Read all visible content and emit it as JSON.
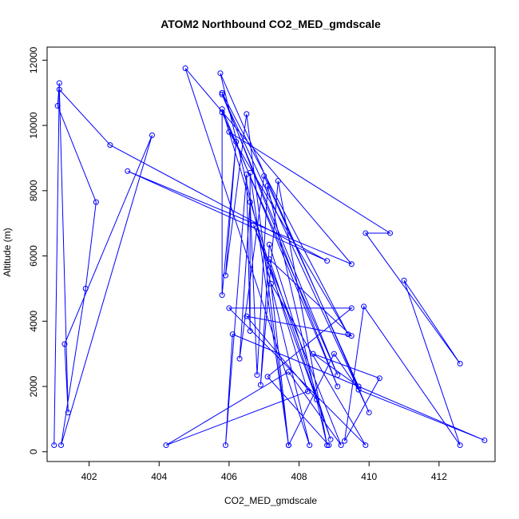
{
  "chart_data": {
    "type": "line",
    "title": "ATOM2 Northbound CO2_MED_gmdscale",
    "xlabel": "CO2_MED_gmdscale",
    "ylabel": "Altitude (m)",
    "xlim": [
      400.8,
      413.6
    ],
    "ylim": [
      -300,
      12400
    ],
    "xticks": [
      402,
      404,
      406,
      408,
      410,
      412
    ],
    "yticks": [
      0,
      2000,
      4000,
      6000,
      8000,
      10000,
      12000
    ],
    "grid": false,
    "legend": "none",
    "colors": {
      "series": "#0000ff",
      "axis": "#000000"
    },
    "series": [
      {
        "points": [
          [
            401.0,
            200
          ],
          [
            401.15,
            11300
          ],
          [
            401.1,
            10600
          ],
          [
            402.2,
            7650
          ],
          [
            401.9,
            5000
          ],
          [
            401.2,
            200
          ],
          [
            403.8,
            9700
          ],
          [
            401.3,
            3300
          ],
          [
            401.4,
            1200
          ],
          [
            401.15,
            11100
          ],
          [
            402.6,
            9400
          ],
          [
            408.8,
            5850
          ],
          [
            403.1,
            8600
          ],
          [
            409.5,
            5750
          ],
          [
            404.75,
            11750
          ],
          [
            408.3,
            200
          ],
          [
            405.75,
            11600
          ],
          [
            410.0,
            1200
          ],
          [
            405.8,
            10950
          ],
          [
            409.1,
            2350
          ],
          [
            405.8,
            10400
          ],
          [
            405.8,
            4800
          ],
          [
            406.2,
            9500
          ],
          [
            405.9,
            5400
          ],
          [
            406.5,
            10350
          ],
          [
            407.7,
            200
          ],
          [
            406.6,
            8550
          ],
          [
            406.6,
            3700
          ],
          [
            406.5,
            8500
          ],
          [
            405.9,
            200
          ],
          [
            406.1,
            3600
          ],
          [
            409.7,
            2000
          ],
          [
            407.0,
            8450
          ],
          [
            406.3,
            2850
          ],
          [
            406.6,
            7650
          ],
          [
            406.8,
            2350
          ],
          [
            407.1,
            8150
          ],
          [
            408.8,
            200
          ],
          [
            407.4,
            8300
          ],
          [
            406.9,
            2050
          ],
          [
            407.15,
            6350
          ],
          [
            408.9,
            380
          ],
          [
            407.15,
            5900
          ],
          [
            409.5,
            3550
          ],
          [
            406.5,
            4150
          ],
          [
            408.5,
            1600
          ],
          [
            406.7,
            6950
          ],
          [
            409.2,
            200
          ],
          [
            407.7,
            2450
          ],
          [
            404.2,
            200
          ],
          [
            408.25,
            1850
          ],
          [
            405.8,
            10500
          ],
          [
            409.1,
            2000
          ],
          [
            405.8,
            11000
          ],
          [
            409.4,
            3600
          ],
          [
            406.0,
            9800
          ],
          [
            410.6,
            6700
          ],
          [
            409.9,
            6700
          ],
          [
            412.6,
            2700
          ],
          [
            411.0,
            5250
          ],
          [
            412.6,
            200
          ],
          [
            409.85,
            4450
          ],
          [
            409.3,
            330
          ],
          [
            410.3,
            2250
          ],
          [
            408.4,
            3000
          ],
          [
            409.7,
            2000
          ],
          [
            413.3,
            350
          ],
          [
            409.7,
            1900
          ],
          [
            409.0,
            3000
          ],
          [
            407.7,
            200
          ],
          [
            407.2,
            5150
          ],
          [
            409.9,
            200
          ],
          [
            406.0,
            4400
          ],
          [
            409.5,
            4400
          ],
          [
            407.1,
            2300
          ],
          [
            408.85,
            200
          ]
        ]
      }
    ]
  }
}
